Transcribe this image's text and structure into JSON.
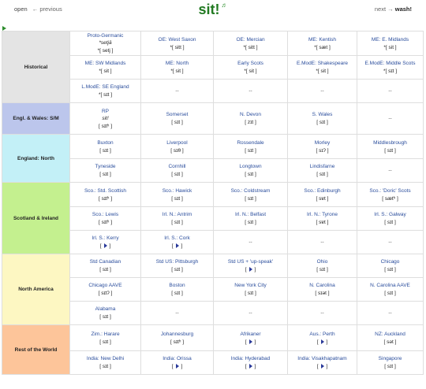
{
  "header": {
    "title": "sit!",
    "speaker_icon": "speaker-icon",
    "left_open": "open",
    "left_prev": "← previous",
    "right_next": "next →",
    "right_word": "wash!"
  },
  "regions": [
    {
      "name": "Historical",
      "color": "#e4e4e4",
      "rows": [
        [
          {
            "label": "Proto-Germanic",
            "sub": "*setjā",
            "ipa": "*[ setj ]"
          },
          {
            "label": "OE: West Saxon",
            "ipa": "*[ sitt ]"
          },
          {
            "label": "OE: Mercian",
            "ipa": "*[ sitt ]"
          },
          {
            "label": "ME: Kentish",
            "ipa": "*[ sæt ]"
          },
          {
            "label": "ME: E. Midlands",
            "ipa": "*[ sit ]"
          }
        ],
        [
          {
            "label": "ME: SW Midlands",
            "ipa": "*[ sit ]"
          },
          {
            "label": "ME: North",
            "ipa": "*[ sit ]"
          },
          {
            "label": "Early Scots",
            "ipa": "*[ sit ]"
          },
          {
            "label": "E.ModE: Shakespeare",
            "ipa": "*[ sit ]"
          },
          {
            "label": "E.ModE: Middle Scots",
            "ipa": "*[ sɪt ]"
          }
        ],
        [
          {
            "label": "L.ModE: SE England",
            "ipa": "*[ sɪt ]"
          },
          {
            "dash": "--"
          },
          {
            "dash": "--"
          },
          {
            "dash": "--"
          },
          {
            "dash": "--"
          }
        ]
      ]
    },
    {
      "name": "Engl. & Wales: S/M",
      "color": "#bcc6ec",
      "rows": [
        [
          {
            "label": "RP",
            "sub": "sit!",
            "ipa": "[ sɪtʰ ]"
          },
          {
            "label": "Somerset",
            "ipa": "[ sɪt ]"
          },
          {
            "label": "N. Devon",
            "ipa": "[ zɪt ]"
          },
          {
            "label": "S. Wales",
            "ipa": "[ sɪt ]"
          },
          {
            "dash": "--"
          }
        ]
      ]
    },
    {
      "name": "England: North",
      "color": "#c3f0f7",
      "rows": [
        [
          {
            "label": "Buxton",
            "ipa": "[ sɪt ]"
          },
          {
            "label": "Liverpool",
            "ipa": "[ sɪθ ]"
          },
          {
            "label": "Rossendale",
            "ipa": "[ sɪt ]"
          },
          {
            "label": "Morley",
            "ipa": "[ sɪʔ ]"
          },
          {
            "label": "Middlesbrough",
            "ipa": "[ sɪt ]"
          }
        ],
        [
          {
            "label": "Tyneside",
            "ipa": "[ sɪt ]"
          },
          {
            "label": "Cornhill",
            "ipa": "[ sɪt ]"
          },
          {
            "label": "Longtown",
            "ipa": "[ sɪt ]"
          },
          {
            "label": "Lindisfarne",
            "ipa": "[ sɪt ]"
          },
          {
            "dash": "--"
          }
        ]
      ]
    },
    {
      "name": "Scotland & Ireland",
      "color": "#c4f08f",
      "rows": [
        [
          {
            "label": "Sco.: Std. Scottish",
            "ipa": "[ sɪtʰ ]"
          },
          {
            "label": "Sco.: Hawick",
            "ipa": "[ sɪt ]"
          },
          {
            "label": "Sco.: Coldstream",
            "ipa": "[ sɪt ]"
          },
          {
            "label": "Sco.: Edinburgh",
            "ipa": "[ sɐt ]"
          },
          {
            "label": "Sco.: 'Doric' Scots",
            "ipa": "[ sætʰ ]"
          }
        ],
        [
          {
            "label": "Sco.: Lewis",
            "ipa": "[ sɪtʰ ]"
          },
          {
            "label": "Irl. N.: Antrim",
            "ipa": "[ sɪt ]"
          },
          {
            "label": "Irl. N.: Belfast",
            "ipa": "[ sɪt ]"
          },
          {
            "label": "Irl. N.: Tyrone",
            "ipa": "[ sɐt ]"
          },
          {
            "label": "Irl. S.: Galway",
            "ipa": "[ sɪt ]"
          }
        ],
        [
          {
            "label": "Irl. S.: Kerry",
            "icon": true
          },
          {
            "label": "Irl. S.: Cork",
            "icon": true
          },
          {
            "dash": "--"
          },
          {
            "dash": "--"
          },
          {
            "dash": "--"
          }
        ]
      ]
    },
    {
      "name": "North America",
      "color": "#fdf7c2",
      "rows": [
        [
          {
            "label": "Std Canadian",
            "ipa": "[ sɪt ]"
          },
          {
            "label": "Std US: Pittsburgh",
            "ipa": "[ sɪt ]"
          },
          {
            "label": "Std US + 'up-speak'",
            "icon": true
          },
          {
            "label": "Ohio",
            "ipa": "[ sɪt ]"
          },
          {
            "label": "Chicago",
            "ipa": "[ sɪt ]"
          }
        ],
        [
          {
            "label": "Chicago AAVE",
            "ipa": "[ sɪtʔ ]"
          },
          {
            "label": "Boston",
            "ipa": "[ sɪt ]"
          },
          {
            "label": "New York City",
            "ipa": "[ sɪt ]"
          },
          {
            "label": "N. Carolina",
            "ipa": "[ sɪət ]"
          },
          {
            "label": "N. Carolina AAVE",
            "ipa": "[ sɪt ]"
          }
        ],
        [
          {
            "label": "Alabama",
            "ipa": "[ sɪt ]"
          },
          {
            "dash": "--"
          },
          {
            "dash": "--"
          },
          {
            "dash": "--"
          },
          {
            "dash": "--"
          }
        ]
      ]
    },
    {
      "name": "Rest of the World",
      "color": "#fdc59a",
      "rows": [
        [
          {
            "label": "Zim.: Harare",
            "ipa": "[ sɪt ]"
          },
          {
            "label": "Johannesburg",
            "ipa": "[ sɪtʰ ]"
          },
          {
            "label": "Afrikaner",
            "icon": true
          },
          {
            "label": "Aus.: Perth",
            "icon": true
          },
          {
            "label": "NZ: Auckland",
            "ipa": "[ sət ]"
          }
        ],
        [
          {
            "label": "India: New Delhi",
            "ipa": "[ sɪt ]"
          },
          {
            "label": "India: Orissa",
            "icon": true
          },
          {
            "label": "India: Hyderabad",
            "icon": true
          },
          {
            "label": "India: Visakhapatnam",
            "icon": true
          },
          {
            "label": "Singapore",
            "ipa": "[ sɪt ]"
          }
        ]
      ]
    }
  ]
}
